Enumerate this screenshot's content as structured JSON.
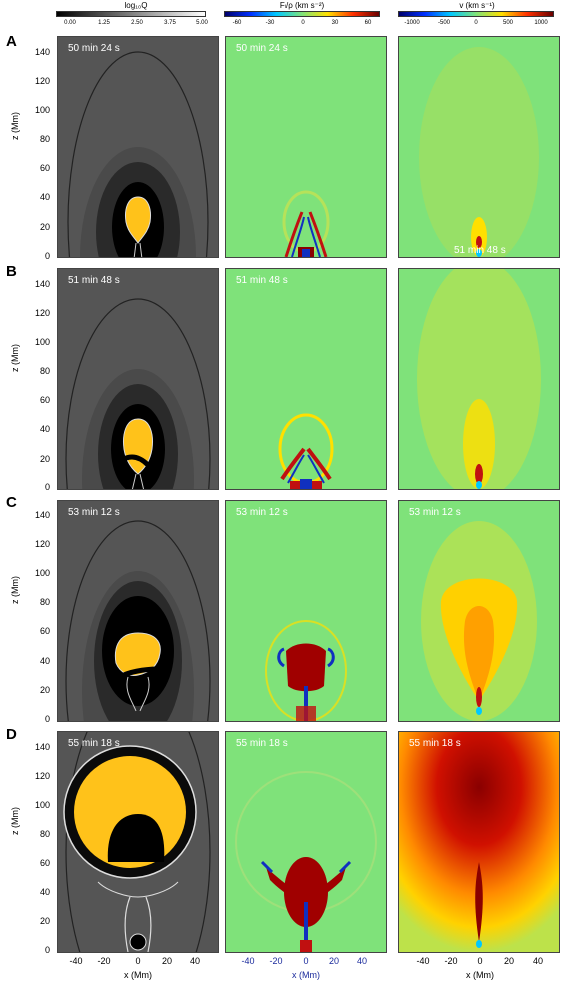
{
  "colorbars": [
    {
      "title": "log₁₀Q",
      "ticks": [
        "0.00",
        "1.25",
        "2.50",
        "3.75",
        "5.00"
      ]
    },
    {
      "title": "Fₗ/ρ (km s⁻²)",
      "ticks": [
        "-60",
        "-30",
        "0",
        "30",
        "60"
      ]
    },
    {
      "title": "v (km s⁻¹)",
      "ticks": [
        "-1000",
        "-500",
        "0",
        "500",
        "1000"
      ]
    }
  ],
  "rows": [
    {
      "letter": "A",
      "times": [
        "50 min 24 s",
        "50 min 24 s",
        "51 min 48 s"
      ]
    },
    {
      "letter": "B",
      "times": [
        "51 min 48 s",
        "51 min 48 s",
        ""
      ]
    },
    {
      "letter": "C",
      "times": [
        "53 min 12 s",
        "53 min 12 s",
        "53 min 12 s"
      ]
    },
    {
      "letter": "D",
      "times": [
        "55 min 18 s",
        "55 min 18 s",
        "55 min 18 s"
      ]
    }
  ],
  "axes": {
    "ylabel": "z (Mm)",
    "yticks": [
      "140",
      "120",
      "100",
      "80",
      "60",
      "40",
      "20",
      "0"
    ],
    "xlabel": "x (Mm)",
    "xticks": [
      "-40",
      "-20",
      "0",
      "20",
      "40"
    ]
  },
  "chart_data": {
    "type": "heatmap",
    "panels": "4 rows (A-D) by 3 columns: log10 Q, F/rho, v",
    "x_range": [
      -58,
      58
    ],
    "y_range": [
      0,
      150
    ],
    "colormaps": [
      "gray",
      "jet",
      "jet"
    ],
    "colors": {
      "fluxrope": "#ffc21a",
      "bg_q": "#505050",
      "bg_jet": "#7fe27a"
    }
  }
}
